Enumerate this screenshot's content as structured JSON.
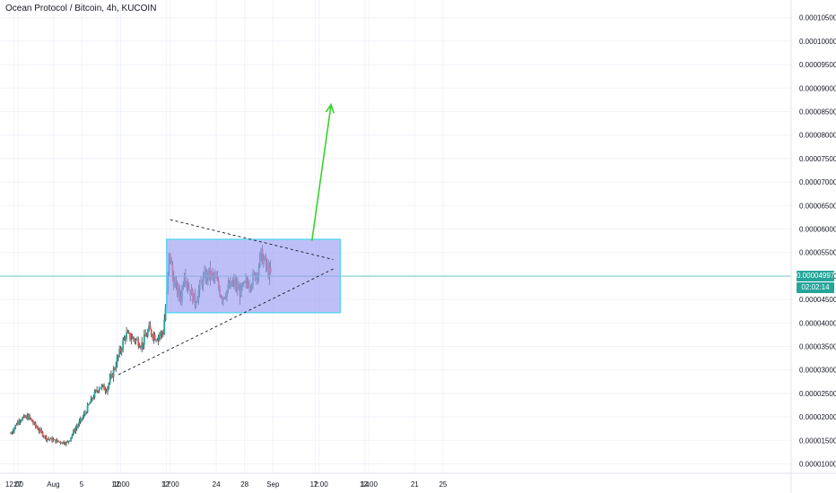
{
  "header": {
    "symbol_name": "Ocean Protocol / Bitcoin",
    "interval": "4h",
    "exchange": "KUCOIN"
  },
  "current_price": {
    "value": "0.00004997",
    "countdown": "02:02:14"
  },
  "colors": {
    "up": "#26a69a",
    "down": "#ef5350",
    "wick": "#222222",
    "box_fill": "#9c9cf2",
    "box_border": "#5fd4f0",
    "arrow": "#3ad12e",
    "price_line": "#56c2b8",
    "grid": "#f0f3fa"
  },
  "chart_data": {
    "type": "candlestick",
    "title": "Ocean Protocol / Bitcoin, 4h, KUCOIN",
    "xlabel": "",
    "ylabel": "",
    "ylim": [
      9.3e-06,
      0.0001075
    ],
    "grid": true,
    "y_ticks": [
      "0.00001000",
      "0.00001500",
      "0.00002000",
      "0.00002500",
      "0.00003000",
      "0.00003500",
      "0.00004000",
      "0.00004500",
      "0.00005000",
      "0.00005500",
      "0.00006000",
      "0.00006500",
      "0.00007000",
      "0.00007500",
      "0.00008000",
      "0.00008500",
      "0.00009000",
      "0.00009500",
      "0.00010000",
      "0.00010500"
    ],
    "x_ticks": [
      {
        "label": "12:00",
        "day": 0.5
      },
      {
        "label": "27",
        "day": 1
      },
      {
        "label": "Aug",
        "day": 6
      },
      {
        "label": "5",
        "day": 10
      },
      {
        "label": "10",
        "day": 15
      },
      {
        "label": "12:00",
        "day": 15.5
      },
      {
        "label": "17",
        "day": 22
      },
      {
        "label": "12:00",
        "day": 22.5
      },
      {
        "label": "24",
        "day": 29
      },
      {
        "label": "28",
        "day": 33
      },
      {
        "label": "Sep",
        "day": 37
      },
      {
        "label": "7",
        "day": 43
      },
      {
        "label": "12:00",
        "day": 43.5
      },
      {
        "label": "14",
        "day": 50
      },
      {
        "label": "12:00",
        "day": 50.5
      },
      {
        "label": "21",
        "day": 57
      },
      {
        "label": "25",
        "day": 61
      }
    ],
    "price_path": [
      [
        0.0,
        1.65e-05
      ],
      [
        1.2,
        1.95e-05
      ],
      [
        2.5,
        2e-05
      ],
      [
        3.5,
        1.8e-05
      ],
      [
        5.0,
        1.55e-05
      ],
      [
        6.5,
        1.48e-05
      ],
      [
        8.0,
        1.45e-05
      ],
      [
        9.0,
        1.72e-05
      ],
      [
        10.2,
        2e-05
      ],
      [
        11.5,
        2.4e-05
      ],
      [
        12.5,
        2.65e-05
      ],
      [
        13.5,
        2.6e-05
      ],
      [
        14.2,
        2.85e-05
      ],
      [
        15.2,
        3.3e-05
      ],
      [
        16.2,
        3.75e-05
      ],
      [
        17.5,
        3.65e-05
      ],
      [
        18.5,
        3.55e-05
      ],
      [
        19.5,
        3.85e-05
      ],
      [
        20.5,
        3.7e-05
      ],
      [
        21.5,
        3.8e-05
      ],
      [
        22.0,
        4.6e-05
      ],
      [
        22.4,
        5.55e-05
      ],
      [
        22.8,
        5e-05
      ],
      [
        23.4,
        4.7e-05
      ],
      [
        24.0,
        4.55e-05
      ],
      [
        24.5,
        5.1e-05
      ],
      [
        25.0,
        4.8e-05
      ],
      [
        26.0,
        4.45e-05
      ],
      [
        27.0,
        4.9e-05
      ],
      [
        28.0,
        5.05e-05
      ],
      [
        29.0,
        4.9e-05
      ],
      [
        29.8,
        4.55e-05
      ],
      [
        30.8,
        4.75e-05
      ],
      [
        31.5,
        4.85e-05
      ],
      [
        32.3,
        4.65e-05
      ],
      [
        33.3,
        4.85e-05
      ],
      [
        34.0,
        4.9e-05
      ],
      [
        34.8,
        5.1e-05
      ],
      [
        35.3,
        5.45e-05
      ],
      [
        35.8,
        5.3e-05
      ],
      [
        36.3,
        5.1e-05
      ],
      [
        36.8,
        5e-05
      ]
    ],
    "candle_step_days": 0.1667,
    "annotations": {
      "upper_trendline": [
        [
          22.5,
          6.2e-05
        ],
        [
          45.5,
          5.35e-05
        ]
      ],
      "lower_trendline": [
        [
          15.2,
          2.9e-05
        ],
        [
          45.5,
          5.15e-05
        ]
      ],
      "rectangle": {
        "day_start": 22.0,
        "day_end": 46.5,
        "price_top": 5.78e-05,
        "price_bottom": 4.22e-05
      },
      "arrow": {
        "from": [
          42.5,
          5.75e-05
        ],
        "to": [
          45.2,
          8.65e-05
        ]
      }
    }
  }
}
